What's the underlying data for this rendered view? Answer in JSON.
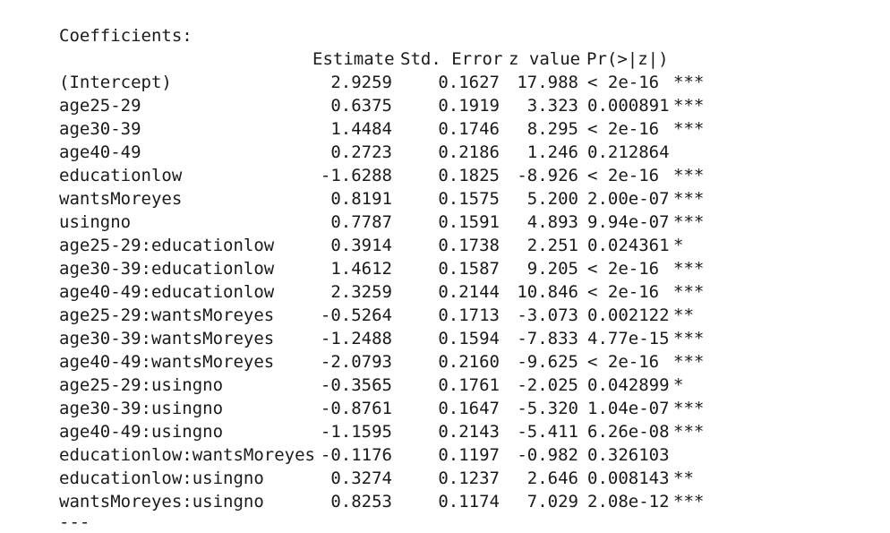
{
  "output": {
    "heading": "Coefficients:",
    "columns": {
      "estimate": "Estimate",
      "std_error": "Std. Error",
      "z_value": "z value",
      "p_value": "Pr(>|z|)"
    },
    "rows": [
      {
        "name": "(Intercept)",
        "estimate": "2.9259",
        "std_error": "0.1627",
        "z_value": "17.988",
        "p_value": "< 2e-16",
        "signif": "***"
      },
      {
        "name": "age25-29",
        "estimate": "0.6375",
        "std_error": "0.1919",
        "z_value": "3.323",
        "p_value": "0.000891",
        "signif": "***"
      },
      {
        "name": "age30-39",
        "estimate": "1.4484",
        "std_error": "0.1746",
        "z_value": "8.295",
        "p_value": "< 2e-16",
        "signif": "***"
      },
      {
        "name": "age40-49",
        "estimate": "0.2723",
        "std_error": "0.2186",
        "z_value": "1.246",
        "p_value": "0.212864",
        "signif": ""
      },
      {
        "name": "educationlow",
        "estimate": "-1.6288",
        "std_error": "0.1825",
        "z_value": "-8.926",
        "p_value": "< 2e-16",
        "signif": "***"
      },
      {
        "name": "wantsMoreyes",
        "estimate": "0.8191",
        "std_error": "0.1575",
        "z_value": "5.200",
        "p_value": "2.00e-07",
        "signif": "***"
      },
      {
        "name": "usingno",
        "estimate": "0.7787",
        "std_error": "0.1591",
        "z_value": "4.893",
        "p_value": "9.94e-07",
        "signif": "***"
      },
      {
        "name": "age25-29:educationlow",
        "estimate": "0.3914",
        "std_error": "0.1738",
        "z_value": "2.251",
        "p_value": "0.024361",
        "signif": "*"
      },
      {
        "name": "age30-39:educationlow",
        "estimate": "1.4612",
        "std_error": "0.1587",
        "z_value": "9.205",
        "p_value": "< 2e-16",
        "signif": "***"
      },
      {
        "name": "age40-49:educationlow",
        "estimate": "2.3259",
        "std_error": "0.2144",
        "z_value": "10.846",
        "p_value": "< 2e-16",
        "signif": "***"
      },
      {
        "name": "age25-29:wantsMoreyes",
        "estimate": "-0.5264",
        "std_error": "0.1713",
        "z_value": "-3.073",
        "p_value": "0.002122",
        "signif": "**"
      },
      {
        "name": "age30-39:wantsMoreyes",
        "estimate": "-1.2488",
        "std_error": "0.1594",
        "z_value": "-7.833",
        "p_value": "4.77e-15",
        "signif": "***"
      },
      {
        "name": "age40-49:wantsMoreyes",
        "estimate": "-2.0793",
        "std_error": "0.2160",
        "z_value": "-9.625",
        "p_value": "< 2e-16",
        "signif": "***"
      },
      {
        "name": "age25-29:usingno",
        "estimate": "-0.3565",
        "std_error": "0.1761",
        "z_value": "-2.025",
        "p_value": "0.042899",
        "signif": "*"
      },
      {
        "name": "age30-39:usingno",
        "estimate": "-0.8761",
        "std_error": "0.1647",
        "z_value": "-5.320",
        "p_value": "1.04e-07",
        "signif": "***"
      },
      {
        "name": "age40-49:usingno",
        "estimate": "-1.1595",
        "std_error": "0.2143",
        "z_value": "-5.411",
        "p_value": "6.26e-08",
        "signif": "***"
      },
      {
        "name": "educationlow:wantsMoreyes",
        "estimate": "-0.1176",
        "std_error": "0.1197",
        "z_value": "-0.982",
        "p_value": "0.326103",
        "signif": ""
      },
      {
        "name": "educationlow:usingno",
        "estimate": "0.3274",
        "std_error": "0.1237",
        "z_value": "2.646",
        "p_value": "0.008143",
        "signif": "**"
      },
      {
        "name": "wantsMoreyes:usingno",
        "estimate": "0.8253",
        "std_error": "0.1174",
        "z_value": "7.029",
        "p_value": "2.08e-12",
        "signif": "***"
      }
    ],
    "footer": "---"
  }
}
